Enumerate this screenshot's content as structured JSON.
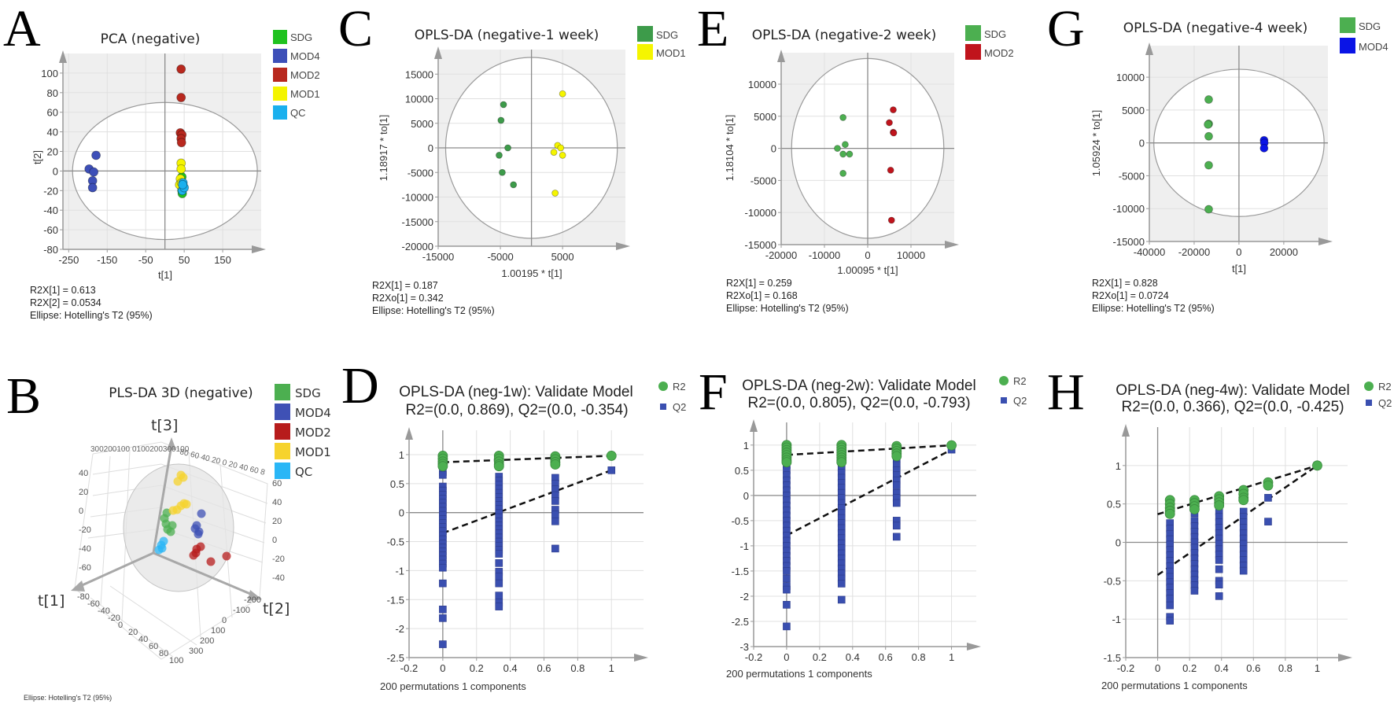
{
  "chart_data": [
    {
      "panel": "A",
      "type": "scatter",
      "title": "PCA (negative)",
      "xlabel": "t[1]",
      "ylabel": "t[2]",
      "xlim": [
        -265,
        250
      ],
      "ylim": [
        -80,
        120
      ],
      "xticks": [
        -250,
        -150,
        -50,
        50,
        150
      ],
      "yticks": [
        100,
        80,
        60,
        40,
        20,
        0,
        -20,
        -40,
        -60,
        -80
      ],
      "ellipse": {
        "rx": 240,
        "ry": 70
      },
      "series": [
        {
          "name": "SDG",
          "color": "#1fc21f",
          "points": [
            [
              44,
              -6
            ],
            [
              44,
              -20
            ],
            [
              45,
              -23
            ],
            [
              42,
              -10
            ],
            [
              43,
              -16
            ]
          ]
        },
        {
          "name": "MOD4",
          "color": "#3d4fb8",
          "points": [
            [
              -179,
              16
            ],
            [
              -197,
              2
            ],
            [
              -185,
              -1
            ],
            [
              -188,
              -10
            ],
            [
              -188,
              -17
            ]
          ]
        },
        {
          "name": "MOD2",
          "color": "#b8281e",
          "points": [
            [
              42,
              104
            ],
            [
              42,
              75
            ],
            [
              40,
              39
            ],
            [
              44,
              37
            ],
            [
              42,
              33
            ],
            [
              43,
              29
            ]
          ]
        },
        {
          "name": "MOD1",
          "color": "#f4f400",
          "points": [
            [
              42,
              8
            ],
            [
              42,
              2
            ],
            [
              40,
              -8
            ],
            [
              38,
              -14
            ],
            [
              43,
              -12
            ]
          ]
        },
        {
          "name": "QC",
          "color": "#1ab0ee",
          "points": [
            [
              47,
              -12
            ],
            [
              48,
              -16
            ],
            [
              45,
              -20
            ],
            [
              50,
              -17
            ],
            [
              46,
              -14
            ]
          ]
        }
      ],
      "stats": [
        "R2X[1] = 0.613",
        "R2X[2] = 0.0534",
        "Ellipse: Hotelling's T2 (95%)"
      ]
    },
    {
      "panel": "B",
      "type": "scatter3d",
      "title": "PLS-DA 3D (negative)",
      "axes": {
        "x": "t[1]",
        "y": "t[2]",
        "z": "t[3]"
      },
      "series": [
        {
          "name": "SDG",
          "color": "#4caf50"
        },
        {
          "name": "MOD4",
          "color": "#3f51b5"
        },
        {
          "name": "MOD2",
          "color": "#b71c1c"
        },
        {
          "name": "MOD1",
          "color": "#f6d32d"
        },
        {
          "name": "QC",
          "color": "#29b6f6"
        }
      ],
      "z_ticks_left": [
        "40",
        "20",
        "0",
        "-20",
        "-40",
        "-60"
      ],
      "z_ticks_right": [
        "60",
        "40",
        "20",
        "0",
        "-20",
        "-40"
      ],
      "x_ticks": [
        "-80",
        "-60",
        "-40",
        "-20",
        "0",
        "20",
        "40",
        "60",
        "80",
        "100"
      ],
      "y_ticks": [
        "-200",
        "-100",
        "0",
        "100",
        "200",
        "300"
      ],
      "back_ticks_left": "300200100",
      "back_ticks_mid": "0100200300100",
      "back_ticks_right": "80 60 40 20 0  20 40 60 8",
      "footnote": "Ellipse: Hotelling's T2 (95%)"
    },
    {
      "panel": "C",
      "type": "scatter",
      "title": "OPLS-DA (negative-1 week)",
      "xlabel": "1.00195 * t[1]",
      "ylabel": "1.18917 * to[1]",
      "xlim": [
        -15000,
        15100
      ],
      "ylim": [
        -20000,
        20000
      ],
      "xticks": [
        -15000,
        -5000,
        5000
      ],
      "yticks": [
        15000,
        10000,
        5000,
        0,
        -5000,
        -10000,
        -15000,
        -20000
      ],
      "ellipse": {
        "rx": 13800,
        "ry": 18400
      },
      "series": [
        {
          "name": "SDG",
          "color": "#3d9b4a",
          "points": [
            [
              -4500,
              8800
            ],
            [
              -4900,
              5600
            ],
            [
              -3800,
              0
            ],
            [
              -5200,
              -1500
            ],
            [
              -4700,
              -5000
            ],
            [
              -2900,
              -7500
            ]
          ]
        },
        {
          "name": "MOD1",
          "color": "#f5f500",
          "points": [
            [
              5000,
              11000
            ],
            [
              4200,
              500
            ],
            [
              4700,
              0
            ],
            [
              3600,
              -900
            ],
            [
              5000,
              -1500
            ],
            [
              3800,
              -9200
            ]
          ]
        }
      ],
      "stats": [
        "R2X[1] = 0.187",
        "R2Xo[1] = 0.342",
        "Ellipse: Hotelling's T2 (95%)"
      ]
    },
    {
      "panel": "E",
      "type": "scatter",
      "title": "OPLS-DA  (negative-2 week)",
      "xlabel": "1.00095 * t[1]",
      "ylabel": "1.18104 * to[1]",
      "xlim": [
        -20000,
        20000
      ],
      "ylim": [
        -15000,
        14900
      ],
      "xticks": [
        -20000,
        -10000,
        0,
        10000
      ],
      "yticks": [
        10000,
        5000,
        0,
        -5000,
        -10000,
        -15000
      ],
      "ellipse": {
        "rx": 17600,
        "ry": 14000
      },
      "series": [
        {
          "name": "SDG",
          "color": "#4caf50",
          "points": [
            [
              -5700,
              4800
            ],
            [
              -7000,
              0
            ],
            [
              -5200,
              600
            ],
            [
              -5700,
              -900
            ],
            [
              -4200,
              -900
            ],
            [
              -5700,
              -3900
            ]
          ]
        },
        {
          "name": "MOD2",
          "color": "#c0141c",
          "points": [
            [
              5900,
              6000
            ],
            [
              5000,
              4000
            ],
            [
              5900,
              2500
            ],
            [
              6000,
              2400
            ],
            [
              5300,
              -3400
            ],
            [
              5500,
              -11200
            ]
          ]
        }
      ],
      "stats": [
        "R2X[1] = 0.259",
        "R2Xo[1] = 0.168",
        "Ellipse: Hotelling's T2 (95%)"
      ]
    },
    {
      "panel": "G",
      "type": "scatter",
      "title": "OPLS-DA  (negative-4 week)",
      "xlabel": "t[1]",
      "ylabel": "1.05924 * to[1]",
      "xlim": [
        -40000,
        39700
      ],
      "ylim": [
        -15000,
        14800
      ],
      "xticks": [
        -40000,
        -20000,
        0,
        20000
      ],
      "yticks": [
        10000,
        5000,
        0,
        -5000,
        -10000,
        -15000
      ],
      "ellipse": {
        "rx": 38000,
        "ry": 11200
      },
      "series": [
        {
          "name": "SDG",
          "color": "#4caf50",
          "points": [
            [
              -13500,
              6600
            ],
            [
              -13500,
              2900
            ],
            [
              -13800,
              2800
            ],
            [
              -13500,
              1000
            ],
            [
              -13500,
              -3400
            ],
            [
              -13500,
              -10100
            ]
          ]
        },
        {
          "name": "MOD4",
          "color": "#0a14e6",
          "points": [
            [
              11200,
              400
            ],
            [
              11300,
              0
            ],
            [
              11200,
              -800
            ]
          ]
        }
      ],
      "stats": [
        "R2X[1] = 0.828",
        "R2Xo[1] = 0.0724",
        "Ellipse: Hotelling's T2 (95%)"
      ]
    },
    {
      "panel": "D",
      "type": "scatter",
      "title": "OPLS-DA (neg-1w): Validate Model",
      "subtitle": "R2=(0.0, 0.869), Q2=(0.0, -0.354)",
      "xlabel": "200 permutations 1 components",
      "xlim": [
        -0.2,
        1.19
      ],
      "ylim": [
        -2.5,
        1.42
      ],
      "xticks": [
        -0.2,
        0,
        0.2,
        0.4,
        0.6,
        0.8,
        1
      ],
      "yticks": [
        1,
        0.5,
        0,
        -0.5,
        -1,
        -1.5,
        -2,
        -2.5
      ],
      "legend": [
        {
          "name": "R2",
          "color": "#4caf50"
        },
        {
          "name": "Q2",
          "color": "#3a4fb0"
        }
      ],
      "r2": [
        {
          "x": 0,
          "y": [
            0.98,
            0.93,
            0.88,
            0.84,
            0.8
          ]
        },
        {
          "x": 0.333,
          "y": [
            0.98,
            0.93,
            0.88,
            0.83,
            0.8
          ]
        },
        {
          "x": 0.667,
          "y": [
            0.97,
            0.92,
            0.87,
            0.83
          ]
        },
        {
          "x": 1,
          "y": [
            0.98
          ]
        }
      ],
      "q2": [
        {
          "x": 0,
          "y": [
            0.7,
            0.65,
            0.45,
            0.38,
            0.31,
            0.24,
            0.17,
            0.1,
            0.03,
            -0.04,
            -0.11,
            -0.18,
            -0.25,
            -0.32,
            -0.39,
            -0.46,
            -0.53,
            -0.6,
            -0.67,
            -0.74,
            -0.81,
            -0.88,
            -0.95,
            -1.22,
            -1.67,
            -1.82,
            -2.27
          ]
        },
        {
          "x": 0.333,
          "y": [
            0.62,
            0.55,
            0.48,
            0.41,
            0.34,
            0.27,
            0.2,
            0.13,
            0.06,
            -0.01,
            -0.08,
            -0.15,
            -0.22,
            -0.29,
            -0.36,
            -0.43,
            -0.5,
            -0.57,
            -0.64,
            -0.71,
            -0.87,
            -1.02,
            -1.1,
            -1.22,
            -1.43,
            -1.55,
            -1.62
          ]
        },
        {
          "x": 0.667,
          "y": [
            0.6,
            0.5,
            0.4,
            0.3,
            0.2,
            0.05,
            -0.03,
            -0.15,
            -0.62
          ]
        },
        {
          "x": 1,
          "y": [
            0.73
          ]
        }
      ],
      "r2_line": [
        [
          0,
          0.869
        ],
        [
          1,
          0.98
        ]
      ],
      "q2_line": [
        [
          0,
          -0.354
        ],
        [
          1,
          0.73
        ]
      ]
    },
    {
      "panel": "F",
      "type": "scatter",
      "title": "OPLS-DA (neg-2w): Validate Model",
      "subtitle": "R2=(0.0, 0.805), Q2=(0.0, -0.793)",
      "xlabel": "200 permutations 1 components",
      "xlim": [
        -0.2,
        1.15
      ],
      "ylim": [
        -3,
        1.45
      ],
      "xticks": [
        -0.2,
        0,
        0.2,
        0.4,
        0.6,
        0.8,
        1
      ],
      "yticks": [
        1,
        0.5,
        0,
        -0.5,
        -1,
        -1.5,
        -2,
        -2.5,
        -3
      ],
      "legend": [
        {
          "name": "R2",
          "color": "#4caf50"
        },
        {
          "name": "Q2",
          "color": "#3a4fb0"
        }
      ],
      "r2": [
        {
          "x": 0,
          "y": [
            1.0,
            0.95,
            0.9,
            0.85,
            0.8,
            0.75,
            0.7,
            0.66
          ]
        },
        {
          "x": 0.333,
          "y": [
            1.0,
            0.95,
            0.9,
            0.85,
            0.8,
            0.75,
            0.7,
            0.66
          ]
        },
        {
          "x": 0.667,
          "y": [
            0.98,
            0.93,
            0.88,
            0.83,
            0.78
          ]
        },
        {
          "x": 1,
          "y": [
            0.995
          ]
        }
      ],
      "q2": [
        {
          "x": 0,
          "y": [
            0.7,
            0.6,
            0.5,
            0.4,
            0.3,
            0.2,
            0.1,
            0,
            -0.1,
            -0.2,
            -0.3,
            -0.4,
            -0.5,
            -0.6,
            -0.7,
            -0.8,
            -0.9,
            -1.0,
            -1.1,
            -1.2,
            -1.3,
            -1.4,
            -1.5,
            -1.65,
            -1.8,
            -1.87,
            -2.17,
            -2.6
          ]
        },
        {
          "x": 0.333,
          "y": [
            0.75,
            0.65,
            0.55,
            0.45,
            0.35,
            0.25,
            0.15,
            0.05,
            -0.05,
            -0.15,
            -0.25,
            -0.35,
            -0.45,
            -0.55,
            -0.65,
            -0.75,
            -0.85,
            -0.95,
            -1.05,
            -1.15,
            -1.25,
            -1.35,
            -1.45,
            -1.55,
            -1.65,
            -1.75,
            -2.07
          ]
        },
        {
          "x": 0.667,
          "y": [
            0.72,
            0.6,
            0.5,
            0.4,
            0.3,
            0.2,
            0.05,
            -0.05,
            -0.15,
            -0.5,
            -0.6,
            -0.82
          ]
        },
        {
          "x": 1,
          "y": [
            0.91
          ]
        }
      ],
      "r2_line": [
        [
          0,
          0.805
        ],
        [
          1,
          0.995
        ]
      ],
      "q2_line": [
        [
          0,
          -0.793
        ],
        [
          1,
          0.91
        ]
      ]
    },
    {
      "panel": "H",
      "type": "scatter",
      "title": "OPLS-DA (neg-4w): Validate Model",
      "subtitle": "R2=(0.0, 0.366), Q2=(0.0, -0.425)",
      "xlabel": "200 permutations 1 components",
      "xlim": [
        -0.2,
        1.19
      ],
      "ylim": [
        -1.5,
        1.5
      ],
      "xticks": [
        -0.2,
        0,
        0.2,
        0.4,
        0.6,
        0.8,
        1
      ],
      "yticks": [
        1,
        0.5,
        0,
        -0.5,
        -1,
        -1.5
      ],
      "legend": [
        {
          "name": "R2",
          "color": "#4caf50"
        },
        {
          "name": "Q2",
          "color": "#3a4fb0"
        }
      ],
      "r2": [
        {
          "x": 0.077,
          "y": [
            0.55,
            0.5,
            0.45,
            0.41,
            0.37
          ]
        },
        {
          "x": 0.231,
          "y": [
            0.55,
            0.51,
            0.47,
            0.43
          ]
        },
        {
          "x": 0.385,
          "y": [
            0.6,
            0.56,
            0.52,
            0.48
          ]
        },
        {
          "x": 0.538,
          "y": [
            0.68,
            0.63,
            0.58,
            0.55
          ]
        },
        {
          "x": 0.692,
          "y": [
            0.78,
            0.74
          ]
        },
        {
          "x": 1,
          "y": [
            1.0
          ]
        }
      ],
      "q2": [
        {
          "x": 0.077,
          "y": [
            0.25,
            0.18,
            0.11,
            0.04,
            -0.03,
            -0.1,
            -0.17,
            -0.24,
            -0.31,
            -0.38,
            -0.45,
            -0.52,
            -0.59,
            -0.66,
            -0.73,
            -0.82,
            -0.97,
            -1.02
          ]
        },
        {
          "x": 0.231,
          "y": [
            0.38,
            0.28,
            0.21,
            0.14,
            0.07,
            0,
            -0.07,
            -0.14,
            -0.21,
            -0.28,
            -0.35,
            -0.42,
            -0.49,
            -0.56,
            -0.63
          ]
        },
        {
          "x": 0.385,
          "y": [
            0.4,
            0.33,
            0.26,
            0.19,
            0.12,
            0.05,
            -0.02,
            -0.09,
            -0.16,
            -0.23,
            -0.35,
            -0.5,
            -0.55,
            -0.7
          ]
        },
        {
          "x": 0.538,
          "y": [
            0.4,
            0.33,
            0.26,
            0.19,
            0.12,
            0.05,
            -0.02,
            -0.09,
            -0.16,
            -0.23,
            -0.3,
            -0.37
          ]
        },
        {
          "x": 0.692,
          "y": [
            0.58,
            0.27
          ]
        },
        {
          "x": 1,
          "y": [
            1.0
          ]
        }
      ],
      "r2_line": [
        [
          0,
          0.366
        ],
        [
          1,
          1.0
        ]
      ],
      "q2_line": [
        [
          0,
          -0.425
        ],
        [
          1,
          1.0
        ]
      ]
    }
  ]
}
